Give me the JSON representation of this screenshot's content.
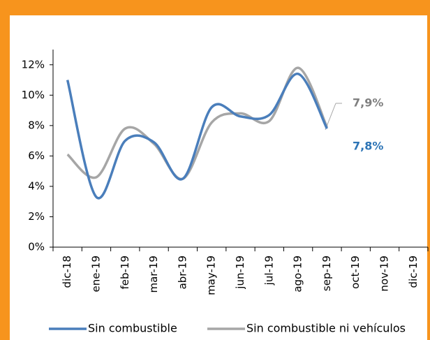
{
  "chart_data": {
    "type": "line",
    "categories": [
      "dic-18",
      "ene-19",
      "feb-19",
      "mar-19",
      "abr-19",
      "may-19",
      "jun-19",
      "jul-19",
      "ago-19",
      "sep-19",
      "oct-19",
      "nov-19",
      "dic-19"
    ],
    "series": [
      {
        "name": "Sin combustible",
        "color": "#4a7ebb",
        "values": [
          11.0,
          3.3,
          7.0,
          6.9,
          4.5,
          9.2,
          8.6,
          8.7,
          11.4,
          7.8,
          null,
          null,
          null
        ],
        "value_labels": [
          null,
          null,
          null,
          null,
          null,
          null,
          null,
          null,
          null,
          "7,8%",
          null,
          null,
          null
        ]
      },
      {
        "name": "Sin combustible ni vehículos",
        "color": "#a6a6a6",
        "values": [
          6.1,
          4.6,
          7.8,
          6.8,
          4.5,
          8.2,
          8.8,
          8.3,
          11.8,
          7.9,
          null,
          null,
          null
        ],
        "value_labels": [
          null,
          null,
          null,
          null,
          null,
          null,
          null,
          null,
          null,
          "7,9%",
          null,
          null,
          null
        ]
      }
    ],
    "ylim": [
      0,
      13
    ],
    "yticks": [
      {
        "value": 0,
        "label": "0%"
      },
      {
        "value": 2,
        "label": "2%"
      },
      {
        "value": 4,
        "label": "4%"
      },
      {
        "value": 6,
        "label": "6%"
      },
      {
        "value": 8,
        "label": "8%"
      },
      {
        "value": 10,
        "label": "10%"
      },
      {
        "value": 12,
        "label": "12%"
      }
    ],
    "legend": "bottom"
  }
}
